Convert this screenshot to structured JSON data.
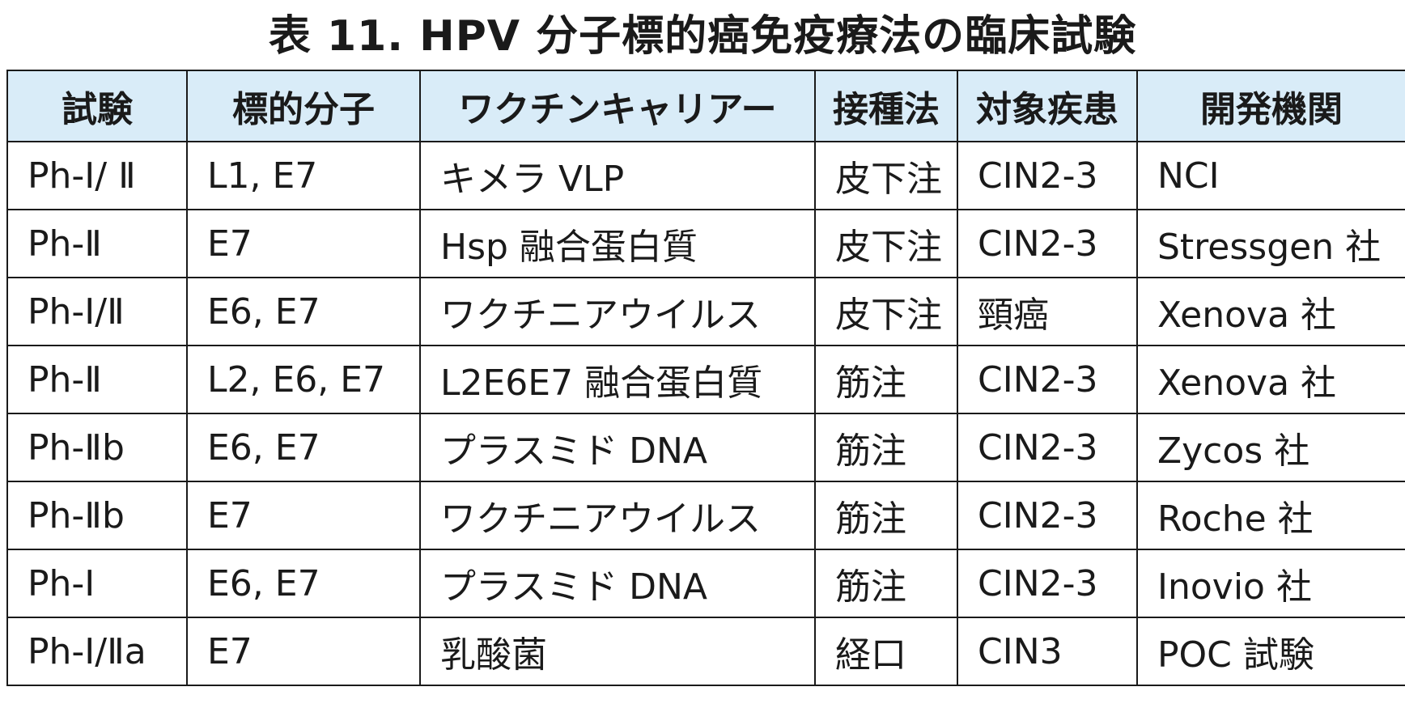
{
  "title": "表 11.  HPV 分子標的癌免疫療法の臨床試験",
  "table": {
    "headers": [
      "試験",
      "標的分子",
      "ワクチンキャリアー",
      "接種法",
      "対象疾患",
      "開発機関"
    ],
    "rows": [
      [
        "Ph-I/ Ⅱ",
        "L1, E7",
        "キメラ VLP",
        "皮下注",
        "CIN2-3",
        "NCI"
      ],
      [
        "Ph-Ⅱ",
        "E7",
        "Hsp 融合蛋白質",
        "皮下注",
        "CIN2-3",
        "Stressgen 社"
      ],
      [
        "Ph-I/Ⅱ",
        "E6, E7",
        "ワクチニアウイルス",
        "皮下注",
        "頸癌",
        "Xenova 社"
      ],
      [
        "Ph-Ⅱ",
        "L2, E6, E7",
        "L2E6E7 融合蛋白質",
        "筋注",
        "CIN2-3",
        "Xenova 社"
      ],
      [
        "Ph-Ⅱb",
        "E6, E7",
        "プラスミド DNA",
        "筋注",
        "CIN2-3",
        "Zycos 社"
      ],
      [
        "Ph-Ⅱb",
        "E7",
        "ワクチニアウイルス",
        "筋注",
        "CIN2-3",
        "Roche 社"
      ],
      [
        "Ph-I",
        "E6, E7",
        "プラスミド DNA",
        "筋注",
        "CIN2-3",
        "Inovio 社"
      ],
      [
        "Ph-I/Ⅱa",
        "E7",
        "乳酸菌",
        "経口",
        "CIN3",
        "POC 試験"
      ]
    ]
  }
}
